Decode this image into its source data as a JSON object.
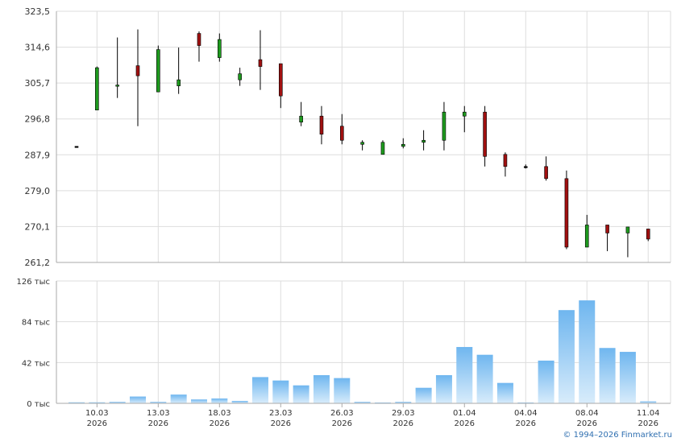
{
  "chart_data": [
    {
      "type": "candlestick",
      "title": "",
      "y_ticks": [
        "323,5",
        "314,6",
        "305,7",
        "296,8",
        "287,9",
        "279,0",
        "270,1",
        "261,2"
      ],
      "ylim": [
        261.2,
        323.5
      ],
      "grid": true,
      "x_tick_labels": [
        {
          "date": "10.03",
          "year": "2026"
        },
        {
          "date": "13.03",
          "year": "2026"
        },
        {
          "date": "18.03",
          "year": "2026"
        },
        {
          "date": "23.03",
          "year": "2026"
        },
        {
          "date": "26.03",
          "year": "2026"
        },
        {
          "date": "29.03",
          "year": "2026"
        },
        {
          "date": "01.04",
          "year": "2026"
        },
        {
          "date": "04.04",
          "year": "2026"
        },
        {
          "date": "08.04",
          "year": "2026"
        },
        {
          "date": "11.04",
          "year": "2026"
        }
      ],
      "candles": [
        {
          "o": 290.0,
          "h": 290.0,
          "l": 290.0,
          "c": 290.0
        },
        {
          "o": 299.0,
          "h": 309.8,
          "l": 299.0,
          "c": 309.5
        },
        {
          "o": 305.0,
          "h": 317.0,
          "l": 302.0,
          "c": 305.2
        },
        {
          "o": 310.0,
          "h": 319.0,
          "l": 295.0,
          "c": 307.5
        },
        {
          "o": 303.5,
          "h": 315.0,
          "l": 303.5,
          "c": 314.0
        },
        {
          "o": 305.0,
          "h": 314.5,
          "l": 303.0,
          "c": 306.5
        },
        {
          "o": 318.0,
          "h": 318.5,
          "l": 311.0,
          "c": 315.0
        },
        {
          "o": 312.0,
          "h": 318.0,
          "l": 311.0,
          "c": 316.5
        },
        {
          "o": 306.5,
          "h": 309.5,
          "l": 305.0,
          "c": 308.0
        },
        {
          "o": 311.5,
          "h": 318.8,
          "l": 304.0,
          "c": 309.8
        },
        {
          "o": 310.5,
          "h": 310.5,
          "l": 299.5,
          "c": 302.5
        },
        {
          "o": 296.0,
          "h": 301.0,
          "l": 295.0,
          "c": 297.5
        },
        {
          "o": 297.5,
          "h": 300.0,
          "l": 290.5,
          "c": 293.0
        },
        {
          "o": 295.0,
          "h": 298.0,
          "l": 290.5,
          "c": 291.5
        },
        {
          "o": 290.5,
          "h": 291.5,
          "l": 289.0,
          "c": 291.0
        },
        {
          "o": 288.0,
          "h": 291.5,
          "l": 288.0,
          "c": 291.0
        },
        {
          "o": 290.0,
          "h": 292.0,
          "l": 289.5,
          "c": 290.5
        },
        {
          "o": 291.0,
          "h": 294.0,
          "l": 289.0,
          "c": 291.5
        },
        {
          "o": 291.5,
          "h": 301.0,
          "l": 289.0,
          "c": 298.5
        },
        {
          "o": 297.5,
          "h": 300.0,
          "l": 293.5,
          "c": 298.5
        },
        {
          "o": 298.5,
          "h": 300.0,
          "l": 285.0,
          "c": 287.5
        },
        {
          "o": 288.0,
          "h": 288.5,
          "l": 282.5,
          "c": 285.0
        },
        {
          "o": 285.0,
          "h": 285.5,
          "l": 284.5,
          "c": 285.0
        },
        {
          "o": 285.0,
          "h": 287.5,
          "l": 281.5,
          "c": 282.0
        },
        {
          "o": 282.0,
          "h": 284.0,
          "l": 264.5,
          "c": 265.0
        },
        {
          "o": 265.0,
          "h": 273.0,
          "l": 265.0,
          "c": 270.5
        },
        {
          "o": 270.5,
          "h": 270.5,
          "l": 264.0,
          "c": 268.5
        },
        {
          "o": 268.5,
          "h": 270.0,
          "l": 262.5,
          "c": 270.0
        },
        {
          "o": 269.5,
          "h": 269.5,
          "l": 266.5,
          "c": 267.0
        }
      ]
    },
    {
      "type": "bar",
      "title": "",
      "y_ticks": [
        "126 тыс",
        "84 тыс",
        "42 тыс",
        "0 тыс"
      ],
      "ylim": [
        0,
        126000
      ],
      "values": [
        1000,
        1000,
        1500,
        7000,
        1500,
        9000,
        4000,
        5000,
        2500,
        27000,
        23500,
        18500,
        29000,
        26000,
        1500,
        800,
        1500,
        16000,
        29000,
        58000,
        50000,
        21000,
        800,
        44000,
        96000,
        106000,
        57000,
        53000,
        2000
      ]
    }
  ],
  "copyright": "© 1994–2026 Finmarket.ru",
  "colors": {
    "up": "#1e9a1e",
    "down": "#a01010",
    "grid": "#dddddd",
    "axis": "#aaaaaa",
    "text": "#333333",
    "bar_top": "#6fb6ef",
    "bar_bottom": "#d8ecfb"
  }
}
